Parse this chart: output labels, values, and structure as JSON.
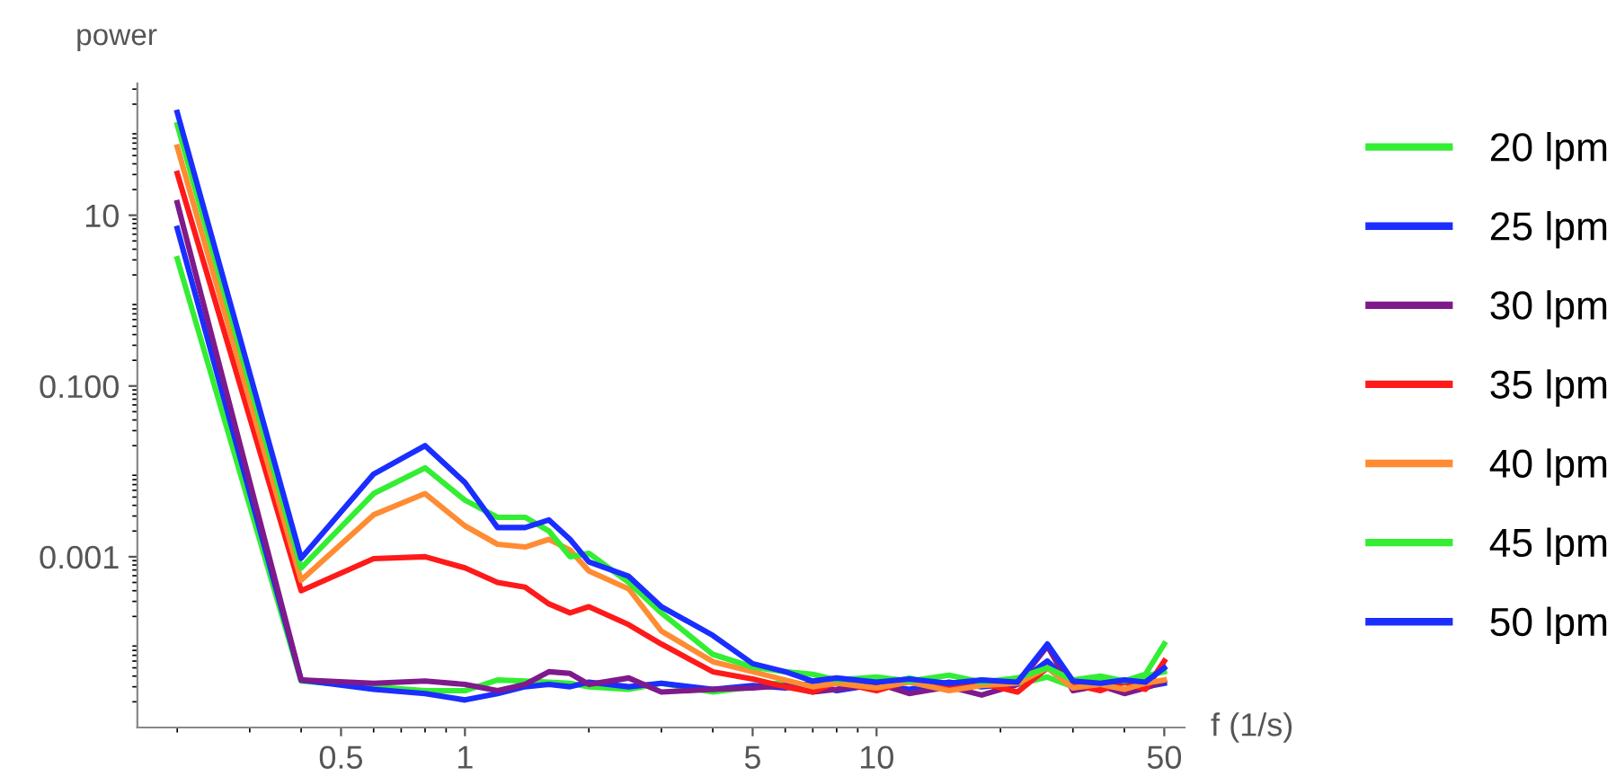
{
  "chart_data": {
    "type": "line",
    "xlabel": "f (1/s)",
    "ylabel": "power",
    "log": "xy",
    "legend": "right",
    "grid": false,
    "marker": "none",
    "line_style": "solid",
    "xlim": [
      0.16,
      56
    ],
    "ylim": [
      1e-05,
      350
    ],
    "xticks": [
      0.5,
      1,
      5,
      10,
      50
    ],
    "yticks": [
      10,
      {
        "value": 0.1,
        "label": "0.100"
      },
      0.001
    ],
    "x": [
      0.2,
      0.4,
      0.6,
      0.8,
      1,
      1.2,
      1.4,
      1.6,
      1.8,
      2,
      2.5,
      3,
      4,
      5,
      6,
      7,
      8,
      10,
      12,
      15,
      18,
      22,
      26,
      30,
      35,
      40,
      45,
      50
    ],
    "series": [
      {
        "name": "20 lpm",
        "color": "#33ee33",
        "values": [
          3.1,
          3.5e-05,
          3e-05,
          2.7e-05,
          2.7e-05,
          3.6e-05,
          3.5e-05,
          3.4e-05,
          3.3e-05,
          3e-05,
          2.8e-05,
          3.3e-05,
          2.6e-05,
          3e-05,
          3.4e-05,
          2.8e-05,
          3.5e-05,
          3e-05,
          3.8e-05,
          2.9e-05,
          3.6e-05,
          3.2e-05,
          3.9e-05,
          3e-05,
          3.7e-05,
          3.3e-05,
          4e-05,
          4.5e-05
        ]
      },
      {
        "name": "25 lpm",
        "color": "#1a2eff",
        "values": [
          7,
          3.6e-05,
          2.8e-05,
          2.5e-05,
          2.1e-05,
          2.5e-05,
          3e-05,
          3.2e-05,
          3e-05,
          3.4e-05,
          3e-05,
          3.3e-05,
          2.8e-05,
          3.1e-05,
          2.9e-05,
          3.3e-05,
          2.7e-05,
          3.2e-05,
          2.8e-05,
          3.4e-05,
          3e-05,
          3.3e-05,
          6e-05,
          3.1e-05,
          2.9e-05,
          3.4e-05,
          3e-05,
          3.3e-05
        ]
      },
      {
        "name": "30 lpm",
        "color": "#7f1a8c",
        "values": [
          14,
          3.6e-05,
          3.3e-05,
          3.5e-05,
          3.2e-05,
          2.7e-05,
          3.2e-05,
          4.5e-05,
          4.3e-05,
          3.2e-05,
          3.8e-05,
          2.6e-05,
          2.8e-05,
          2.9e-05,
          3.1e-05,
          2.6e-05,
          2.8e-05,
          3.3e-05,
          2.5e-05,
          3e-05,
          2.4e-05,
          3.2e-05,
          9e-05,
          2.7e-05,
          3.1e-05,
          2.5e-05,
          2.9e-05,
          3.5e-05
        ]
      },
      {
        "name": "35 lpm",
        "color": "#ff1a1a",
        "values": [
          31,
          0.0004,
          0.00095,
          0.001,
          0.00074,
          0.0005,
          0.00044,
          0.00028,
          0.00022,
          0.00026,
          0.00016,
          9.5e-05,
          4.5e-05,
          3.7e-05,
          3e-05,
          2.6e-05,
          3.4e-05,
          2.7e-05,
          3.5e-05,
          2.8e-05,
          3.3e-05,
          2.6e-05,
          5e-05,
          3.2e-05,
          2.7e-05,
          3.4e-05,
          2.8e-05,
          6e-05
        ]
      },
      {
        "name": "40 lpm",
        "color": "#ff8c33",
        "values": [
          63,
          0.00053,
          0.0031,
          0.0055,
          0.0023,
          0.0014,
          0.0013,
          0.0016,
          0.0012,
          0.00068,
          0.00042,
          0.000135,
          5.9e-05,
          4.5e-05,
          3.6e-05,
          3e-05,
          3.3e-05,
          2.9e-05,
          3.4e-05,
          2.7e-05,
          3.1e-05,
          3.3e-05,
          5e-05,
          2.9e-05,
          3.2e-05,
          2.8e-05,
          3.3e-05,
          3.6e-05
        ]
      },
      {
        "name": "45 lpm",
        "color": "#33ee33",
        "values": [
          115,
          0.00074,
          0.0055,
          0.011,
          0.0046,
          0.0029,
          0.0029,
          0.002,
          0.001,
          0.0011,
          0.0005,
          0.00022,
          7.2e-05,
          5.1e-05,
          4.5e-05,
          4.2e-05,
          3.6e-05,
          3.9e-05,
          3.5e-05,
          4.1e-05,
          3.4e-05,
          3.8e-05,
          5e-05,
          3.6e-05,
          4e-05,
          3.5e-05,
          4.2e-05,
          9.5e-05
        ]
      },
      {
        "name": "50 lpm",
        "color": "#1a2eff",
        "values": [
          160,
          0.00096,
          0.0093,
          0.02,
          0.0074,
          0.0022,
          0.0022,
          0.0027,
          0.0016,
          0.00087,
          0.00059,
          0.00026,
          0.00012,
          5.6e-05,
          4.5e-05,
          3.5e-05,
          3.8e-05,
          3.4e-05,
          3.7e-05,
          3.3e-05,
          3.6e-05,
          3.4e-05,
          9.5e-05,
          3.5e-05,
          3.3e-05,
          3.6e-05,
          3.4e-05,
          5e-05
        ]
      }
    ]
  }
}
